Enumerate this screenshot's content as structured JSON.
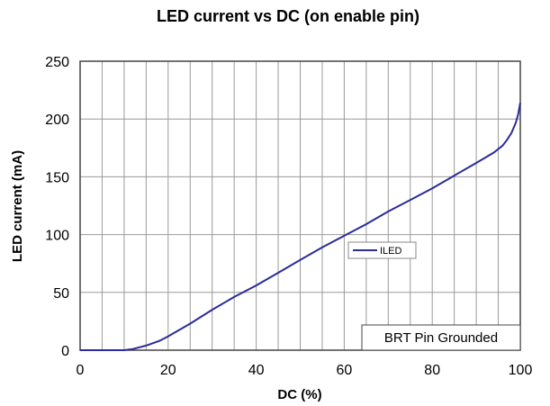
{
  "chart_data": {
    "type": "line",
    "title": "LED current vs DC (on enable pin)",
    "xlabel": "DC (%)",
    "ylabel": "LED current (mA)",
    "xlim": [
      0,
      100
    ],
    "ylim": [
      0,
      250
    ],
    "x_ticks": [
      "0",
      "20",
      "40",
      "60",
      "80",
      "100"
    ],
    "y_ticks": [
      "0",
      "50",
      "100",
      "150",
      "200",
      "250"
    ],
    "grid": "vertical and horizontal",
    "legend_position": "center",
    "annotation": "BRT Pin Grounded",
    "series": [
      {
        "name": "ILED",
        "color": "#2b2b9a",
        "x": [
          0,
          5,
          10,
          12,
          15,
          18,
          20,
          25,
          30,
          35,
          40,
          45,
          50,
          55,
          60,
          65,
          70,
          75,
          80,
          85,
          90,
          94,
          96,
          97,
          98,
          99,
          99.5,
          100
        ],
        "y": [
          0,
          0,
          0,
          1,
          4,
          8,
          12,
          23,
          35,
          46,
          56,
          67,
          78,
          89,
          99,
          109,
          120,
          130,
          140,
          151,
          162,
          171,
          177,
          182,
          188,
          197,
          204,
          214
        ]
      }
    ]
  }
}
